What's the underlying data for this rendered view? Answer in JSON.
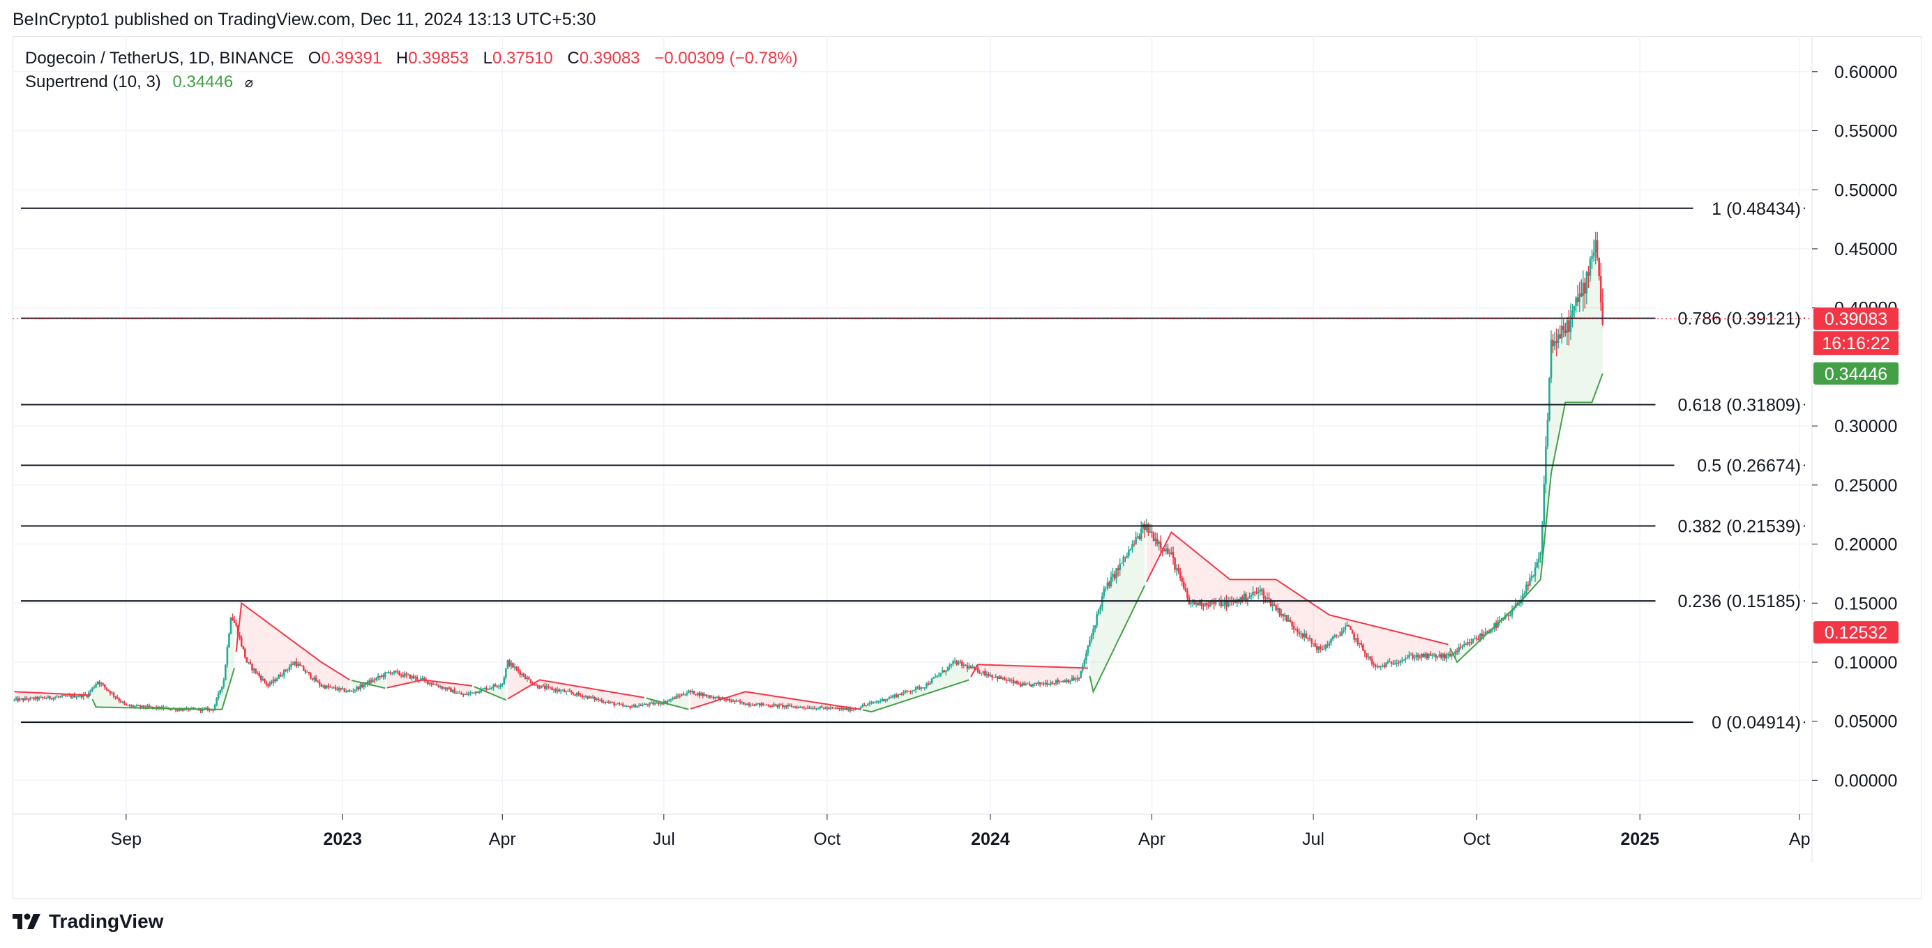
{
  "header": {
    "published": "BeInCrypto1 published on TradingView.com, Dec 11, 2024 13:13 UTC+5:30"
  },
  "legend": {
    "symbol": "Dogecoin / TetherUS, 1D, BINANCE",
    "o_label": "O",
    "o_value": "0.39391",
    "h_label": "H",
    "h_value": "0.39853",
    "l_label": "L",
    "l_value": "0.37510",
    "c_label": "C",
    "c_value": "0.39083",
    "change": "−0.00309 (−0.78%)",
    "indicator": "Supertrend (10, 3)",
    "indicator_value": "0.34446",
    "hide_icon": "⌀"
  },
  "footer": {
    "logo_icon": "tradingview-logo-icon",
    "brand": "TradingView"
  },
  "colors": {
    "up": "#22ab94",
    "down": "#f23645",
    "supertrend_up": "#43a047",
    "supertrend_down": "#f23645",
    "fib_line": "#131722",
    "grid": "#f0f3fa"
  },
  "chart_data": {
    "type": "candlestick",
    "title": "Dogecoin / TetherUS, 1D, BINANCE",
    "ylim": [
      -0.07,
      0.63
    ],
    "yticks": [
      "0.60000",
      "0.55000",
      "0.50000",
      "0.45000",
      "0.40000",
      "0.30000",
      "0.25000",
      "0.20000",
      "0.15000",
      "0.10000",
      "0.05000",
      "0.00000"
    ],
    "ytick_values": [
      0.6,
      0.55,
      0.5,
      0.45,
      0.4,
      0.3,
      0.25,
      0.2,
      0.15,
      0.1,
      0.05,
      0.0
    ],
    "xticks": [
      {
        "label": "Sep",
        "date": "2022-09-01",
        "bold": false
      },
      {
        "label": "2023",
        "date": "2023-01-01",
        "bold": true
      },
      {
        "label": "Apr",
        "date": "2023-04-01",
        "bold": false
      },
      {
        "label": "Jul",
        "date": "2023-07-01",
        "bold": false
      },
      {
        "label": "Oct",
        "date": "2023-10-01",
        "bold": false
      },
      {
        "label": "2024",
        "date": "2024-01-01",
        "bold": true
      },
      {
        "label": "Apr",
        "date": "2024-04-01",
        "bold": false
      },
      {
        "label": "Jul",
        "date": "2024-07-01",
        "bold": false
      },
      {
        "label": "Oct",
        "date": "2024-10-01",
        "bold": false
      },
      {
        "label": "2025",
        "date": "2025-01-01",
        "bold": true
      },
      {
        "label": "Ap",
        "date": "2025-04-01",
        "bold": false
      }
    ],
    "xlim": [
      "2022-06-29",
      "2025-04-08"
    ],
    "fib_levels": [
      {
        "label": "1 (0.48434)",
        "value": 0.48434
      },
      {
        "label": "0.786 (0.39121)",
        "value": 0.39121
      },
      {
        "label": "0.618 (0.31809)",
        "value": 0.31809
      },
      {
        "label": "0.5 (0.26674)",
        "value": 0.26674
      },
      {
        "label": "0.382 (0.21539)",
        "value": 0.21539
      },
      {
        "label": "0.236 (0.15185)",
        "value": 0.15185
      },
      {
        "label": "0 (0.04914)",
        "value": 0.04914
      }
    ],
    "price_labels": [
      {
        "text": "0.39083",
        "value": 0.39083,
        "color": "#f23645"
      },
      {
        "text": "16:16:22",
        "value": 0.39083,
        "color": "#f23645",
        "sub": true
      },
      {
        "text": "0.34446",
        "value": 0.34446,
        "color": "#43a047"
      },
      {
        "text": "0.12532",
        "value": 0.12532,
        "color": "#f23645"
      }
    ],
    "price_path": [
      [
        "2022-06-30",
        0.068
      ],
      [
        "2022-07-20",
        0.07
      ],
      [
        "2022-08-10",
        0.072
      ],
      [
        "2022-08-16",
        0.084
      ],
      [
        "2022-09-01",
        0.063
      ],
      [
        "2022-10-01",
        0.06
      ],
      [
        "2022-10-20",
        0.06
      ],
      [
        "2022-10-26",
        0.085
      ],
      [
        "2022-10-30",
        0.14
      ],
      [
        "2022-11-02",
        0.13
      ],
      [
        "2022-11-08",
        0.1
      ],
      [
        "2022-11-20",
        0.08
      ],
      [
        "2022-12-05",
        0.1
      ],
      [
        "2022-12-20",
        0.08
      ],
      [
        "2023-01-05",
        0.075
      ],
      [
        "2023-01-28",
        0.092
      ],
      [
        "2023-02-15",
        0.085
      ],
      [
        "2023-03-10",
        0.072
      ],
      [
        "2023-04-01",
        0.082
      ],
      [
        "2023-04-04",
        0.1
      ],
      [
        "2023-04-20",
        0.08
      ],
      [
        "2023-05-15",
        0.072
      ],
      [
        "2023-06-10",
        0.062
      ],
      [
        "2023-07-01",
        0.066
      ],
      [
        "2023-07-15",
        0.075
      ],
      [
        "2023-08-15",
        0.065
      ],
      [
        "2023-09-15",
        0.062
      ],
      [
        "2023-10-15",
        0.06
      ],
      [
        "2023-11-01",
        0.068
      ],
      [
        "2023-11-25",
        0.08
      ],
      [
        "2023-12-12",
        0.1
      ],
      [
        "2023-12-30",
        0.09
      ],
      [
        "2024-01-20",
        0.08
      ],
      [
        "2024-02-20",
        0.086
      ],
      [
        "2024-03-05",
        0.16
      ],
      [
        "2024-03-28",
        0.215
      ],
      [
        "2024-04-12",
        0.19
      ],
      [
        "2024-04-22",
        0.15
      ],
      [
        "2024-05-15",
        0.15
      ],
      [
        "2024-06-01",
        0.16
      ],
      [
        "2024-06-20",
        0.13
      ],
      [
        "2024-07-05",
        0.11
      ],
      [
        "2024-07-20",
        0.13
      ],
      [
        "2024-08-05",
        0.095
      ],
      [
        "2024-08-25",
        0.105
      ],
      [
        "2024-09-15",
        0.105
      ],
      [
        "2024-10-01",
        0.12
      ],
      [
        "2024-10-20",
        0.14
      ],
      [
        "2024-11-01",
        0.17
      ],
      [
        "2024-11-06",
        0.19
      ],
      [
        "2024-11-12",
        0.37
      ],
      [
        "2024-11-20",
        0.38
      ],
      [
        "2024-12-01",
        0.42
      ],
      [
        "2024-12-07",
        0.46
      ],
      [
        "2024-12-11",
        0.391
      ]
    ],
    "supertrend": [
      [
        "2022-06-30",
        0.075,
        "down"
      ],
      [
        "2022-08-12",
        0.072,
        "down"
      ],
      [
        "2022-08-15",
        0.062,
        "up"
      ],
      [
        "2022-10-20",
        0.06,
        "up"
      ],
      [
        "2022-10-25",
        0.06,
        "up"
      ],
      [
        "2022-11-01",
        0.095,
        "up"
      ],
      [
        "2022-11-05",
        0.15,
        "down"
      ],
      [
        "2022-12-20",
        0.1,
        "down"
      ],
      [
        "2023-01-05",
        0.085,
        "down"
      ],
      [
        "2023-01-25",
        0.078,
        "up"
      ],
      [
        "2023-02-15",
        0.085,
        "down"
      ],
      [
        "2023-03-15",
        0.08,
        "down"
      ],
      [
        "2023-04-03",
        0.068,
        "up"
      ],
      [
        "2023-04-22",
        0.085,
        "down"
      ],
      [
        "2023-06-20",
        0.07,
        "down"
      ],
      [
        "2023-07-15",
        0.06,
        "up"
      ],
      [
        "2023-08-16",
        0.075,
        "down"
      ],
      [
        "2023-10-20",
        0.06,
        "down"
      ],
      [
        "2023-10-26",
        0.058,
        "up"
      ],
      [
        "2023-12-20",
        0.085,
        "up"
      ],
      [
        "2023-12-25",
        0.098,
        "down"
      ],
      [
        "2024-02-25",
        0.095,
        "down"
      ],
      [
        "2024-02-28",
        0.075,
        "up"
      ],
      [
        "2024-03-28",
        0.165,
        "up"
      ],
      [
        "2024-04-12",
        0.21,
        "down"
      ],
      [
        "2024-05-15",
        0.17,
        "down"
      ],
      [
        "2024-06-10",
        0.17,
        "down"
      ],
      [
        "2024-07-10",
        0.14,
        "down"
      ],
      [
        "2024-09-15",
        0.115,
        "down"
      ],
      [
        "2024-09-20",
        0.1,
        "up"
      ],
      [
        "2024-10-25",
        0.15,
        "up"
      ],
      [
        "2024-11-06",
        0.17,
        "up"
      ],
      [
        "2024-11-12",
        0.26,
        "up"
      ],
      [
        "2024-11-20",
        0.32,
        "up"
      ],
      [
        "2024-12-05",
        0.32,
        "up"
      ],
      [
        "2024-12-11",
        0.34446,
        "up"
      ]
    ]
  }
}
